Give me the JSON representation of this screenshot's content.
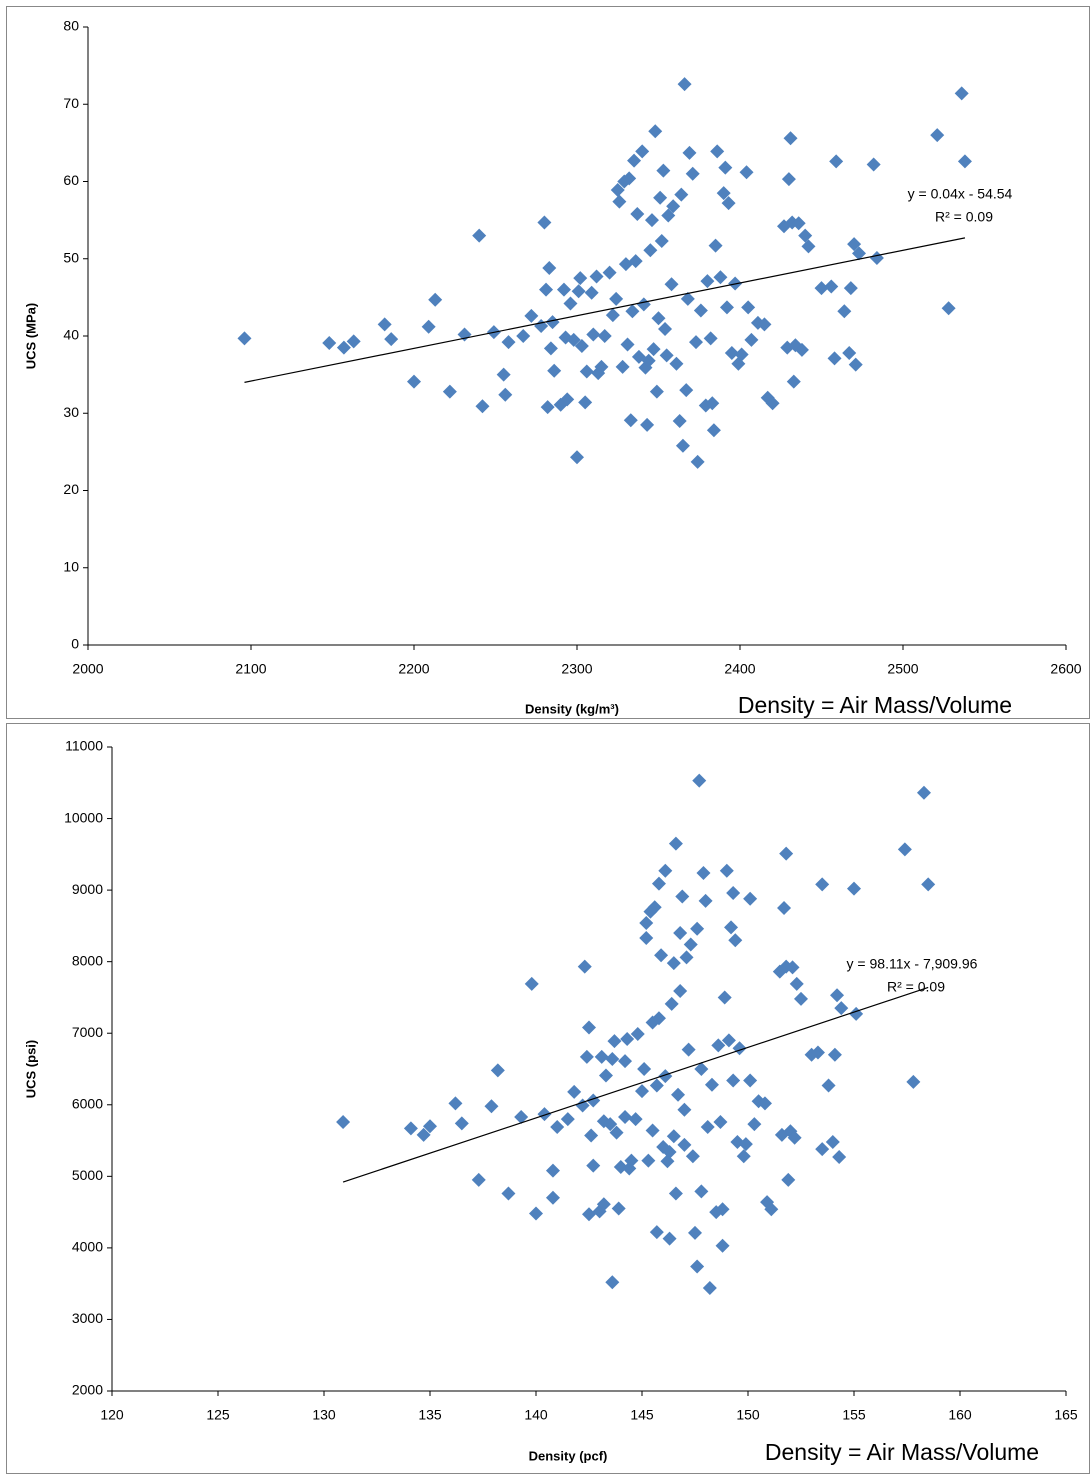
{
  "chart_data": [
    {
      "type": "scatter",
      "x_label": "Density (kg/m³)",
      "y_label": "UCS (MPa)",
      "annotation": "Density = Air Mass/Volume",
      "color": "#4f81bd",
      "xlim": [
        2000,
        2600
      ],
      "xticks": [
        2000,
        2100,
        2200,
        2300,
        2400,
        2500,
        2600
      ],
      "ylim": [
        0,
        80
      ],
      "yticks": [
        0,
        10,
        20,
        30,
        40,
        50,
        60,
        70,
        80
      ],
      "trendline": {
        "equation": "y = 0.04x - 54.54",
        "r_squared": "R² = 0.09",
        "x": [
          2096,
          2538
        ],
        "y": [
          34.0,
          52.7
        ]
      },
      "x": [
        2096,
        2148,
        2157,
        2163,
        2182,
        2186,
        2200,
        2209,
        2213,
        2222,
        2231,
        2240,
        2242,
        2249,
        2255,
        2256,
        2258,
        2267,
        2272,
        2278,
        2280,
        2281,
        2282,
        2283,
        2284,
        2285,
        2286,
        2290,
        2292,
        2293,
        2294,
        2296,
        2298,
        2300,
        2301,
        2302,
        2303,
        2305,
        2306,
        2309,
        2310,
        2312,
        2313,
        2315,
        2317,
        2320,
        2322,
        2324,
        2325,
        2326,
        2328,
        2329,
        2330,
        2331,
        2332,
        2333,
        2334,
        2335,
        2336,
        2337,
        2338,
        2340,
        2341,
        2342,
        2343,
        2344,
        2345,
        2346,
        2347,
        2348,
        2349,
        2350,
        2351,
        2352,
        2353,
        2354,
        2355,
        2356,
        2358,
        2359,
        2361,
        2363,
        2364,
        2365,
        2366,
        2367,
        2368,
        2369,
        2371,
        2373,
        2374,
        2376,
        2379,
        2380,
        2382,
        2383,
        2384,
        2385,
        2386,
        2388,
        2390,
        2391,
        2392,
        2393,
        2395,
        2397,
        2399,
        2401,
        2404,
        2405,
        2407,
        2411,
        2415,
        2417,
        2420,
        2427,
        2429,
        2430,
        2431,
        2432,
        2433,
        2434,
        2436,
        2438,
        2440,
        2442,
        2450,
        2456,
        2458,
        2459,
        2464,
        2467,
        2468,
        2470,
        2471,
        2473,
        2482,
        2484,
        2521,
        2528,
        2536,
        2538
      ],
      "y": [
        39.7,
        39.1,
        38.5,
        39.3,
        41.5,
        39.6,
        34.1,
        41.2,
        44.7,
        32.8,
        40.2,
        53.0,
        30.9,
        40.5,
        35.0,
        32.4,
        39.2,
        40.0,
        42.6,
        41.3,
        54.7,
        46.0,
        30.8,
        48.8,
        38.4,
        41.8,
        35.5,
        31.1,
        46.0,
        39.8,
        31.8,
        44.2,
        39.5,
        24.3,
        45.8,
        47.5,
        38.7,
        31.4,
        35.4,
        45.6,
        40.2,
        47.7,
        35.2,
        36.0,
        40.0,
        48.2,
        42.7,
        44.8,
        58.9,
        57.4,
        36.0,
        60.0,
        49.3,
        38.9,
        60.4,
        29.1,
        43.2,
        62.7,
        49.7,
        55.8,
        37.3,
        63.9,
        44.1,
        35.9,
        28.5,
        36.8,
        51.1,
        55.0,
        38.3,
        66.5,
        32.8,
        42.3,
        57.9,
        52.3,
        61.4,
        40.9,
        37.5,
        55.6,
        46.7,
        56.8,
        36.4,
        29.0,
        58.3,
        25.8,
        72.6,
        33.0,
        44.8,
        63.7,
        61.0,
        39.2,
        23.7,
        43.3,
        31.0,
        47.1,
        39.7,
        31.3,
        27.8,
        51.7,
        63.9,
        47.6,
        58.5,
        61.8,
        43.7,
        57.2,
        37.8,
        46.8,
        36.4,
        37.6,
        61.2,
        43.7,
        39.5,
        41.7,
        41.5,
        32.0,
        31.3,
        54.2,
        38.5,
        60.3,
        65.6,
        54.7,
        34.1,
        38.8,
        54.6,
        38.2,
        53.0,
        51.6,
        46.2,
        46.4,
        37.1,
        62.6,
        43.2,
        37.8,
        46.2,
        51.9,
        36.3,
        50.7,
        62.2,
        50.1,
        66.0,
        43.6,
        71.4,
        62.6
      ]
    },
    {
      "type": "scatter",
      "x_label": "Density (pcf)",
      "y_label": "UCS (psi)",
      "annotation": "Density = Air Mass/Volume",
      "color": "#4f81bd",
      "xlim": [
        120,
        165
      ],
      "xticks": [
        120,
        125,
        130,
        135,
        140,
        145,
        150,
        155,
        160,
        165
      ],
      "ylim": [
        2000,
        11000
      ],
      "yticks": [
        2000,
        3000,
        4000,
        5000,
        6000,
        7000,
        8000,
        9000,
        10000,
        11000
      ],
      "trendline": {
        "equation": "y = 98.11x - 7,909.96",
        "r_squared": "R² = 0.09",
        "x": [
          130.9,
          158.5
        ],
        "y": [
          4920,
          7640
        ]
      },
      "x": [
        130.9,
        134.1,
        134.7,
        135.0,
        136.2,
        136.5,
        137.3,
        137.9,
        138.2,
        138.7,
        139.3,
        139.8,
        140.0,
        140.4,
        140.8,
        140.8,
        141.0,
        141.5,
        141.8,
        142.2,
        142.3,
        142.4,
        142.5,
        142.5,
        142.6,
        142.7,
        142.7,
        143.0,
        143.1,
        143.2,
        143.2,
        143.3,
        143.5,
        143.6,
        143.6,
        143.7,
        143.8,
        143.9,
        144.0,
        144.2,
        144.2,
        144.3,
        144.4,
        144.5,
        144.7,
        144.8,
        145.0,
        145.1,
        145.2,
        145.2,
        145.3,
        145.4,
        145.5,
        145.5,
        145.6,
        145.7,
        145.7,
        145.8,
        145.8,
        145.9,
        146.0,
        146.1,
        146.1,
        146.2,
        146.3,
        146.3,
        146.4,
        146.5,
        146.5,
        146.6,
        146.6,
        146.7,
        146.8,
        146.8,
        146.9,
        147.0,
        147.0,
        147.1,
        147.2,
        147.3,
        147.4,
        147.5,
        147.6,
        147.6,
        147.7,
        147.8,
        147.8,
        147.9,
        148.0,
        148.1,
        148.2,
        148.3,
        148.5,
        148.6,
        148.7,
        148.8,
        148.8,
        148.9,
        149.0,
        149.1,
        149.2,
        149.3,
        149.3,
        149.4,
        149.5,
        149.6,
        149.8,
        149.9,
        150.1,
        150.1,
        150.3,
        150.5,
        150.8,
        150.9,
        151.1,
        151.5,
        151.6,
        151.7,
        151.8,
        151.8,
        151.9,
        152.0,
        152.1,
        152.2,
        152.3,
        152.5,
        153.0,
        153.3,
        153.5,
        153.5,
        153.8,
        154.0,
        154.1,
        154.2,
        154.3,
        154.4,
        155.0,
        155.1,
        157.4,
        157.8,
        158.3,
        158.5
      ],
      "y": [
        5760,
        5670,
        5580,
        5700,
        6020,
        5740,
        4950,
        5980,
        6480,
        4760,
        5830,
        7690,
        4480,
        5870,
        5080,
        4700,
        5690,
        5800,
        6180,
        5990,
        7930,
        6670,
        4470,
        7080,
        5570,
        6060,
        5150,
        4510,
        6670,
        5770,
        4610,
        6410,
        5730,
        3520,
        6640,
        6890,
        5610,
        4550,
        5130,
        6610,
        5830,
        6920,
        5110,
        5220,
        5800,
        6990,
        6190,
        6500,
        8540,
        8330,
        5220,
        8700,
        7150,
        5640,
        8760,
        4220,
        6270,
        9090,
        7210,
        8090,
        5410,
        9270,
        6400,
        5210,
        4130,
        5340,
        7410,
        7980,
        5560,
        9650,
        4760,
        6140,
        8400,
        7590,
        8910,
        5930,
        5440,
        8060,
        6770,
        8240,
        5280,
        4210,
        8460,
        3740,
        10530,
        4790,
        6500,
        9240,
        8850,
        5690,
        3440,
        6280,
        4500,
        6830,
        5760,
        4540,
        4030,
        7500,
        9270,
        6900,
        8480,
        8960,
        6340,
        8300,
        5480,
        6790,
        5280,
        5450,
        8880,
        6340,
        5730,
        6050,
        6020,
        4640,
        4540,
        7860,
        5580,
        8750,
        9510,
        7930,
        4950,
        5630,
        7920,
        5540,
        7690,
        7480,
        6700,
        6730,
        5380,
        9080,
        6270,
        5480,
        6700,
        7530,
        5270,
        7350,
        9020,
        7270,
        9570,
        6320,
        10360,
        9080
      ]
    }
  ]
}
